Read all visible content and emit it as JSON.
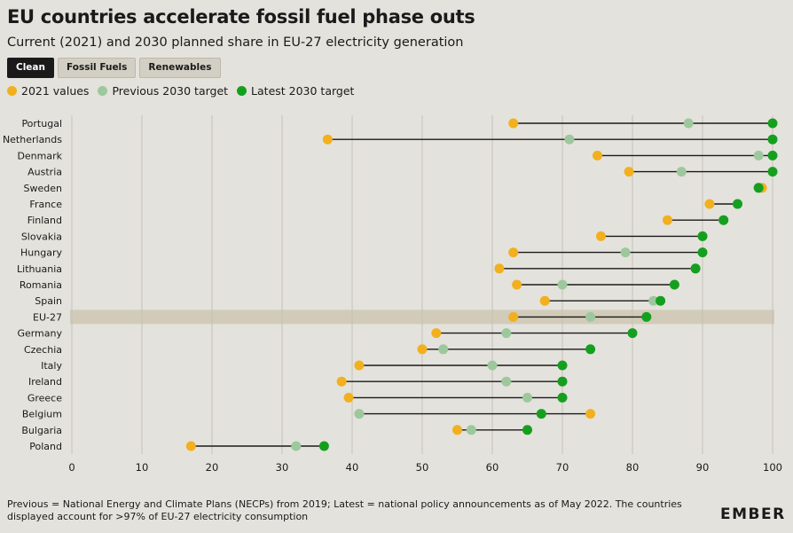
{
  "header": {
    "title": "EU countries accelerate fossil fuel phase outs",
    "subtitle": "Current (2021) and 2030 planned share in EU-27 electricity generation"
  },
  "tabs": [
    {
      "label": "Clean",
      "active": true
    },
    {
      "label": "Fossil Fuels",
      "active": false
    },
    {
      "label": "Renewables",
      "active": false
    }
  ],
  "legend": [
    {
      "label": "2021 values",
      "color": "#f2b01e"
    },
    {
      "label": "Previous 2030 target",
      "color": "#9dc89d"
    },
    {
      "label": "Latest 2030 target",
      "color": "#14a01e"
    }
  ],
  "footnote": "Previous = National Energy and Climate Plans (NECPs) from 2019; Latest = national policy announcements as of May 2022. The countries displayed account for >97% of EU-27 electricity consumption",
  "logo": "EMBER",
  "chart_data": {
    "type": "dumbbell",
    "xlim": [
      0,
      100
    ],
    "xticks": [
      0,
      10,
      20,
      30,
      40,
      50,
      60,
      70,
      80,
      90,
      100
    ],
    "highlight": "EU-27",
    "series": [
      {
        "name": "2021 values",
        "color": "#f2b01e"
      },
      {
        "name": "Previous 2030 target",
        "color": "#9dc89d"
      },
      {
        "name": "Latest 2030 target",
        "color": "#14a01e"
      }
    ],
    "rows": [
      {
        "country": "Portugal",
        "v2021": 63,
        "previous": 88,
        "latest": 100
      },
      {
        "country": "Netherlands",
        "v2021": 36.5,
        "previous": 71,
        "latest": 100
      },
      {
        "country": "Denmark",
        "v2021": 75,
        "previous": 98,
        "latest": 100
      },
      {
        "country": "Austria",
        "v2021": 79.5,
        "previous": 87,
        "latest": 100
      },
      {
        "country": "Sweden",
        "v2021": 98.5,
        "previous": 98,
        "latest": 98
      },
      {
        "country": "France",
        "v2021": 91,
        "previous": 95,
        "latest": 95
      },
      {
        "country": "Finland",
        "v2021": 85,
        "previous": 93,
        "latest": 93
      },
      {
        "country": "Slovakia",
        "v2021": 75.5,
        "previous": 90,
        "latest": 90
      },
      {
        "country": "Hungary",
        "v2021": 63,
        "previous": 79,
        "latest": 90
      },
      {
        "country": "Lithuania",
        "v2021": 61,
        "previous": 89,
        "latest": 89
      },
      {
        "country": "Romania",
        "v2021": 63.5,
        "previous": 70,
        "latest": 86
      },
      {
        "country": "Spain",
        "v2021": 67.5,
        "previous": 83,
        "latest": 84
      },
      {
        "country": "EU-27",
        "v2021": 63,
        "previous": 74,
        "latest": 82
      },
      {
        "country": "Germany",
        "v2021": 52,
        "previous": 62,
        "latest": 80
      },
      {
        "country": "Czechia",
        "v2021": 50,
        "previous": 53,
        "latest": 74
      },
      {
        "country": "Italy",
        "v2021": 41,
        "previous": 60,
        "latest": 70
      },
      {
        "country": "Ireland",
        "v2021": 38.5,
        "previous": 62,
        "latest": 70
      },
      {
        "country": "Greece",
        "v2021": 39.5,
        "previous": 65,
        "latest": 70
      },
      {
        "country": "Belgium",
        "v2021": 74,
        "previous": 41,
        "latest": 67
      },
      {
        "country": "Bulgaria",
        "v2021": 55,
        "previous": 57,
        "latest": 65
      },
      {
        "country": "Poland",
        "v2021": 17,
        "previous": 32,
        "latest": 36
      }
    ]
  }
}
